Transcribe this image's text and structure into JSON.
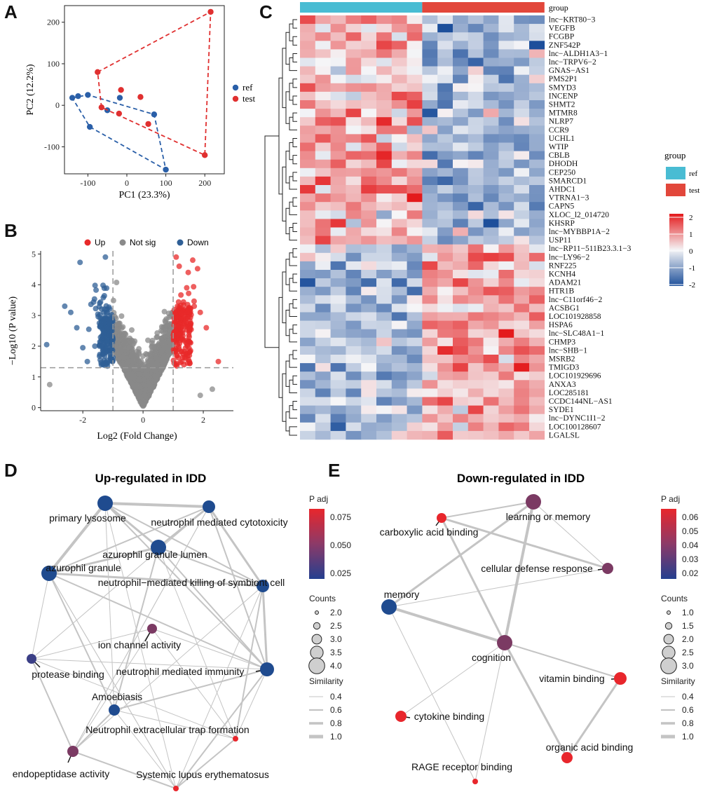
{
  "panels": {
    "A": "A",
    "B": "B",
    "C": "C",
    "D": "D",
    "E": "E"
  },
  "chart_data": [
    {
      "id": "pca",
      "type": "scatter",
      "xlabel": "PC1 (23.3%)",
      "ylabel": "PC2 (12.2%)",
      "xticks": [
        -100,
        0,
        100,
        200
      ],
      "yticks": [
        -100,
        0,
        100,
        200
      ],
      "xlim": [
        -160,
        250
      ],
      "ylim": [
        -165,
        240
      ],
      "legend": [
        "ref",
        "test"
      ],
      "series": [
        {
          "name": "ref",
          "color": "#2a5fa8",
          "points": [
            [
              -140,
              18
            ],
            [
              -125,
              22
            ],
            [
              -100,
              25
            ],
            [
              -50,
              -12
            ],
            [
              -95,
              -52
            ],
            [
              -18,
              18
            ],
            [
              70,
              -22
            ],
            [
              100,
              -155
            ]
          ],
          "hull": [
            [
              -140,
              18
            ],
            [
              -100,
              25
            ],
            [
              70,
              -22
            ],
            [
              100,
              -155
            ],
            [
              -95,
              -52
            ]
          ]
        },
        {
          "name": "test",
          "color": "#e03030",
          "points": [
            [
              -75,
              80
            ],
            [
              -20,
              -20
            ],
            [
              -15,
              37
            ],
            [
              35,
              20
            ],
            [
              55,
              -45
            ],
            [
              -65,
              -5
            ],
            [
              200,
              -120
            ],
            [
              215,
              225
            ]
          ],
          "hull": [
            [
              -75,
              80
            ],
            [
              215,
              225
            ],
            [
              200,
              -120
            ],
            [
              -65,
              -5
            ]
          ]
        }
      ]
    },
    {
      "id": "volcano",
      "type": "scatter",
      "xlabel": "Log2 (Fold Change)",
      "ylabel": "−Log10 (P value)",
      "xticks": [
        -2,
        0,
        2
      ],
      "yticks": [
        0,
        1,
        2,
        3,
        4,
        5
      ],
      "xlim": [
        -3.4,
        3.0
      ],
      "ylim": [
        -0.1,
        5.1
      ],
      "legend": [
        "Up",
        "Not sig",
        "Down"
      ],
      "colors": {
        "Up": "#e8292a",
        "Not sig": "#8a8a8a",
        "Down": "#2f5f96"
      },
      "thresholds": {
        "fc": 1,
        "p": 1.3
      }
    },
    {
      "id": "heatmap",
      "type": "heatmap",
      "group_label": "group",
      "groups": [
        "ref",
        "test"
      ],
      "group_colors": {
        "ref": "#49bcd3",
        "test": "#e2473b"
      },
      "scale_ticks": [
        2,
        1,
        0,
        -1,
        -2
      ],
      "genes": [
        "lnc−KRT80−3",
        "VEGFB",
        "FCGBP",
        "ZNF542P",
        "lnc−ALDH1A3−1",
        "lnc−TRPV6−2",
        "GNAS−AS1",
        "PMS2P1",
        "SMYD3",
        "INCENP",
        "SHMT2",
        "MTMR8",
        "NLRP7",
        "CCR9",
        "UCHL1",
        "WTIP",
        "CBLB",
        "DHODH",
        "CEP250",
        "SMARCD1",
        "AHDC1",
        "VTRNA1−3",
        "CAPN5",
        "XLOC_l2_014720",
        "KHSRP",
        "lnc−MYBBP1A−2",
        "USP11",
        "lnc−RP11−511B23.3.1−3",
        "lnc−LY96−2",
        "RNF225",
        "KCNH4",
        "ADAM21",
        "HTR1B",
        "lnc−C11orf46−2",
        "ACSBG1",
        "LOC101928858",
        "HSPA6",
        "lnc−SLC48A1−1",
        "CHMP3",
        "lnc−SHB−1",
        "MSRB2",
        "TMIGD3",
        "LOC101929696",
        "ANXA3",
        "LOC285181",
        "CCDC144NL−AS1",
        "SYDE1",
        "lnc−DYNC1I1−2",
        "LOC100128607",
        "LGALSL"
      ]
    },
    {
      "id": "network_up",
      "type": "network",
      "title": "Up-regulated in IDD",
      "legend_title": "P adj",
      "color_ticks": [
        "0.075",
        "0.050",
        "0.025"
      ],
      "counts_title": "Counts",
      "counts": [
        "2.0",
        "2.5",
        "3.0",
        "3.5",
        "4.0"
      ],
      "similarity_title": "Similarity",
      "similarity": [
        "0.4",
        "0.6",
        "0.8",
        "1.0"
      ],
      "nodes": [
        "primary lysosome",
        "neutrophil mediated cytotoxicity",
        "azurophil granule lumen",
        "azurophil granule",
        "neutrophil−mediated killing of symbiont cell",
        "ion channel activity",
        "protease binding",
        "neutrophil mediated immunity",
        "Amoebiasis",
        "Neutrophil extracellular trap formation",
        "endopeptidase activity",
        "Systemic lupus erythematosus"
      ]
    },
    {
      "id": "network_down",
      "type": "network",
      "title": "Down-regulated in IDD",
      "legend_title": "P adj",
      "color_ticks": [
        "0.06",
        "0.05",
        "0.04",
        "0.03",
        "0.02"
      ],
      "counts_title": "Counts",
      "counts": [
        "1.0",
        "1.5",
        "2.0",
        "2.5",
        "3.0"
      ],
      "similarity_title": "Similarity",
      "similarity": [
        "0.4",
        "0.6",
        "0.8",
        "1.0"
      ],
      "nodes": [
        "learning or memory",
        "carboxylic acid binding",
        "cellular defense response",
        "memory",
        "cognition",
        "vitamin binding",
        "cytokine binding",
        "organic acid binding",
        "RAGE receptor binding"
      ]
    }
  ]
}
